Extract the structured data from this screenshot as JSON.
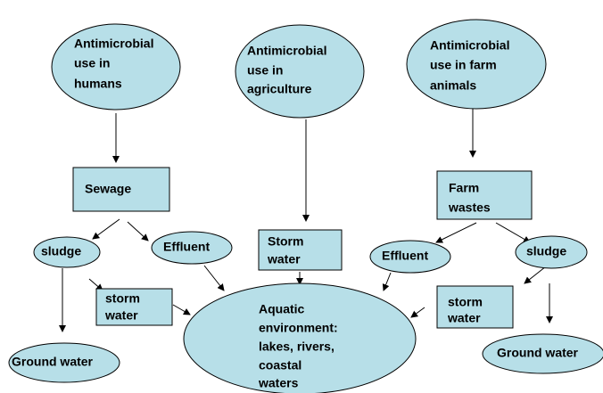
{
  "nodes": [
    {
      "lines": [
        "Antimicrobial",
        "use in",
        "humans"
      ]
    },
    {
      "lines": [
        "Antimicrobial",
        "use in",
        "agriculture"
      ]
    },
    {
      "lines": [
        "Antimicrobial",
        "use in farm",
        "animals"
      ]
    },
    {
      "lines": [
        "Sewage"
      ]
    },
    {
      "lines": [
        "Farm",
        "wastes"
      ]
    },
    {
      "lines": [
        "sludge"
      ]
    },
    {
      "lines": [
        "Effluent"
      ]
    },
    {
      "lines": [
        "Storm",
        "water"
      ]
    },
    {
      "lines": [
        "Effluent"
      ]
    },
    {
      "lines": [
        "sludge"
      ]
    },
    {
      "lines": [
        "storm",
        "water"
      ]
    },
    {
      "lines": [
        "Aquatic",
        "environment:",
        "lakes, rivers,",
        "coastal",
        "waters"
      ]
    },
    {
      "lines": [
        "storm",
        "water"
      ]
    },
    {
      "lines": [
        "Ground water"
      ]
    },
    {
      "lines": [
        "Ground water"
      ]
    }
  ]
}
